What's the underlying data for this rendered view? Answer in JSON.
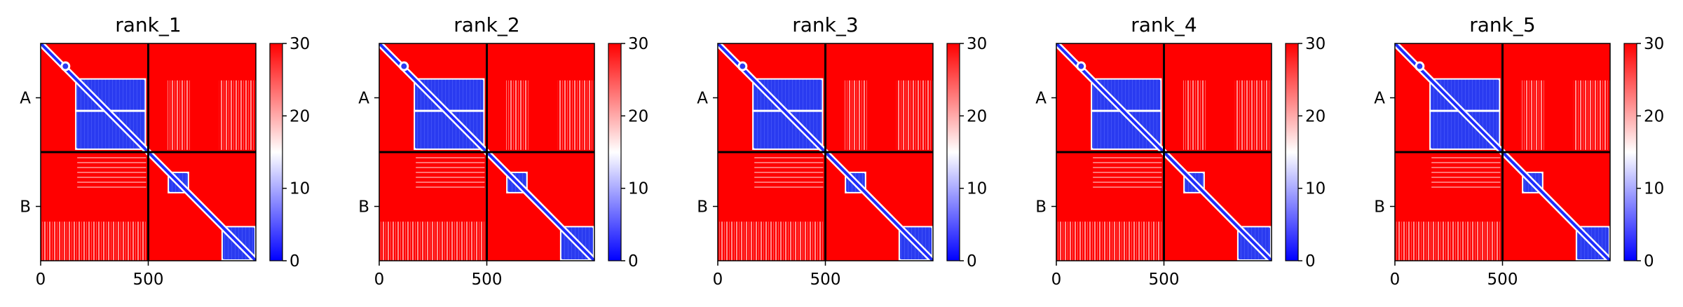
{
  "chart_data": {
    "type": "heatmap",
    "figure_kind": "pae-plot-grid",
    "colormap": [
      "#0000ff",
      "#ffffff",
      "#ff0000"
    ],
    "color_range": [
      0,
      30
    ],
    "colorbar_ticks": [
      "0",
      "10",
      "20",
      "30"
    ],
    "x_ticks": [
      {
        "value": 0,
        "label": "0"
      },
      {
        "value": 500,
        "label": "500"
      }
    ],
    "xlim": [
      0,
      1000
    ],
    "ylim": [
      0,
      1000
    ],
    "chain_boundary": 500,
    "chain_labels": [
      {
        "label": "A",
        "value": 250
      },
      {
        "label": "B",
        "value": 750
      }
    ],
    "panels": [
      {
        "title": "rank_1"
      },
      {
        "title": "rank_2"
      },
      {
        "title": "rank_3"
      },
      {
        "title": "rank_4"
      },
      {
        "title": "rank_5"
      }
    ],
    "low_error_domains": [
      [
        160,
        490
      ],
      [
        590,
        690
      ],
      [
        840,
        1000
      ]
    ]
  }
}
